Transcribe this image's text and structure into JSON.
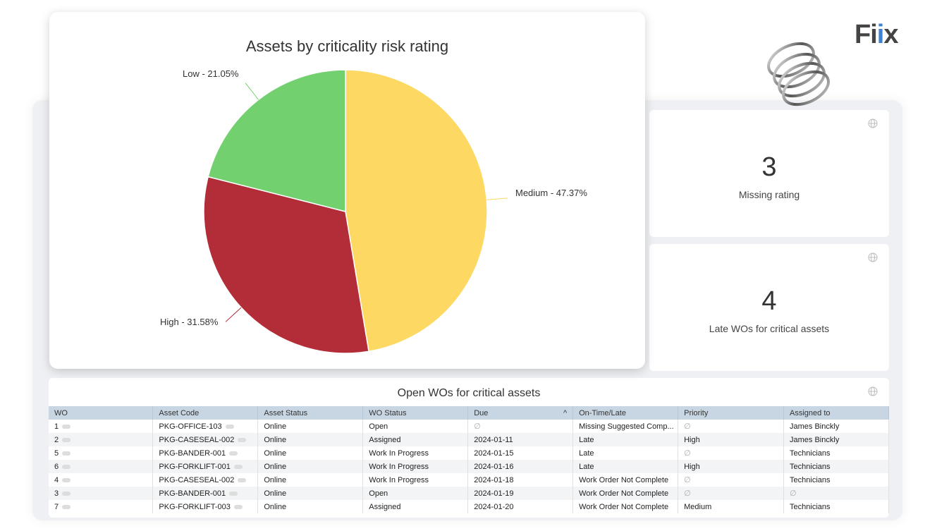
{
  "logo": {
    "text_a": "Fi",
    "text_b": "i",
    "text_c": "x"
  },
  "chart": {
    "title": "Assets by criticality risk rating"
  },
  "chart_data": {
    "type": "pie",
    "title": "Assets by criticality risk rating",
    "slices": [
      {
        "label": "Medium",
        "value": 47.37,
        "display": "Medium - 47.37%",
        "color": "#fdd862"
      },
      {
        "label": "High",
        "value": 31.58,
        "display": "High - 31.58%",
        "color": "#b22d38"
      },
      {
        "label": "Low",
        "value": 21.05,
        "display": "Low - 21.05%",
        "color": "#72d06f"
      }
    ]
  },
  "kpis": [
    {
      "value": "3",
      "label": "Missing rating"
    },
    {
      "value": "4",
      "label": "Late WOs for critical assets"
    }
  ],
  "table": {
    "title": "Open WOs for critical assets",
    "columns": [
      "WO",
      "Asset Code",
      "Asset Status",
      "WO Status",
      "Due",
      "On-Time/Late",
      "Priority",
      "Assigned to"
    ],
    "sort_indicator": "^",
    "rows": [
      [
        "1",
        "PKG-OFFICE-103",
        "Online",
        "Open",
        "∅",
        "Missing Suggested Comp...",
        "∅",
        "James Binckly"
      ],
      [
        "2",
        "PKG-CASESEAL-002",
        "Online",
        "Assigned",
        "2024-01-11",
        "Late",
        "High",
        "James Binckly"
      ],
      [
        "5",
        "PKG-BANDER-001",
        "Online",
        "Work In Progress",
        "2024-01-15",
        "Late",
        "∅",
        "Technicians"
      ],
      [
        "6",
        "PKG-FORKLIFT-001",
        "Online",
        "Work In Progress",
        "2024-01-16",
        "Late",
        "High",
        "Technicians"
      ],
      [
        "4",
        "PKG-CASESEAL-002",
        "Online",
        "Work In Progress",
        "2024-01-18",
        "Work Order Not Complete",
        "∅",
        "Technicians"
      ],
      [
        "3",
        "PKG-BANDER-001",
        "Online",
        "Open",
        "2024-01-19",
        "Work Order Not Complete",
        "∅",
        "∅"
      ],
      [
        "7",
        "PKG-FORKLIFT-003",
        "Online",
        "Assigned",
        "2024-01-20",
        "Work Order Not Complete",
        "Medium",
        "Technicians"
      ]
    ]
  }
}
